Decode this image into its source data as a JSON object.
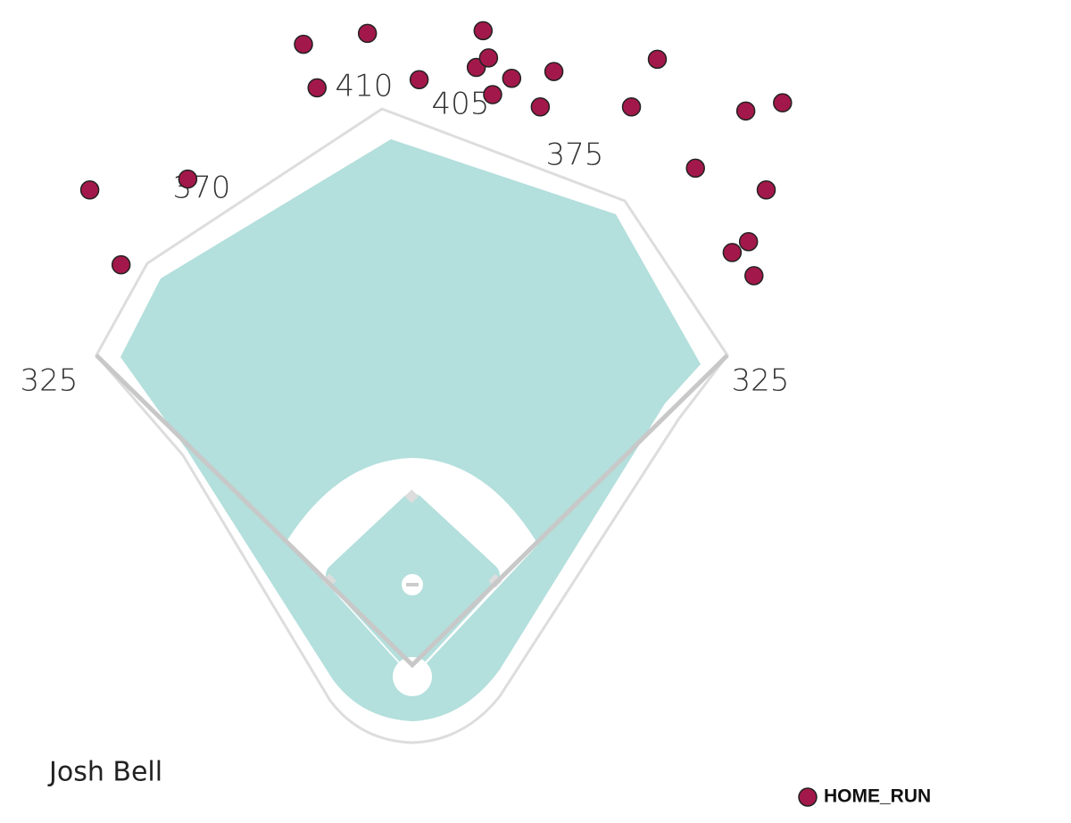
{
  "chart_data": {
    "type": "scatter",
    "title": "Josh Bell",
    "fence_distances": [
      325,
      370,
      410,
      405,
      375,
      325
    ],
    "series": [
      {
        "name": "HOME_RUN",
        "color": "#a3184a",
        "x": [
          -80,
          -33,
          52,
          -70,
          5,
          47,
          56,
          73,
          104,
          59,
          94,
          180,
          161,
          245,
          272,
          208,
          260,
          247,
          235,
          251,
          -165,
          -237,
          -214
        ],
        "values": [
          456,
          464,
          466,
          424,
          430,
          439,
          446,
          431,
          436,
          419,
          410,
          445,
          410,
          407,
          413,
          365,
          349,
          311,
          303,
          286,
          357,
          349,
          294
        ]
      }
    ]
  }
}
